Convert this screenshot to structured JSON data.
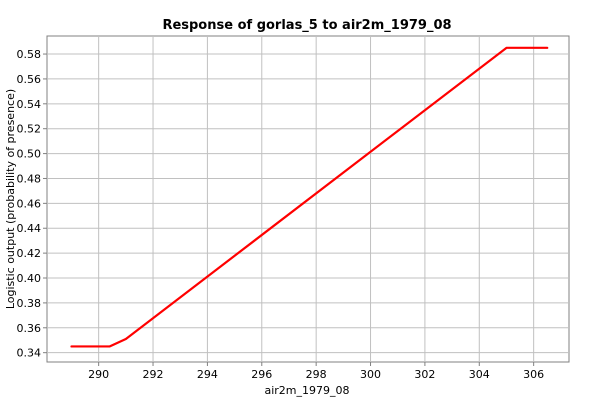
{
  "chart_data": {
    "type": "line",
    "title": "Response of gorlas_5 to air2m_1979_08",
    "xlabel": "air2m_1979_08",
    "ylabel": "Logistic output (probability of presence)",
    "xlim": [
      288.1,
      307.3
    ],
    "ylim": [
      0.3325,
      0.5945
    ],
    "x_ticks": [
      "290",
      "292",
      "294",
      "296",
      "298",
      "300",
      "302",
      "304",
      "306"
    ],
    "y_ticks": [
      "0.34",
      "0.36",
      "0.38",
      "0.40",
      "0.42",
      "0.44",
      "0.46",
      "0.48",
      "0.50",
      "0.52",
      "0.54",
      "0.56",
      "0.58"
    ],
    "grid": true,
    "legend": "none",
    "series": [
      {
        "color": "#ff0000",
        "x": [
          289.0,
          290.4,
          291.0,
          305.0,
          306.5
        ],
        "y": [
          0.345,
          0.345,
          0.351,
          0.585,
          0.585
        ]
      }
    ]
  }
}
